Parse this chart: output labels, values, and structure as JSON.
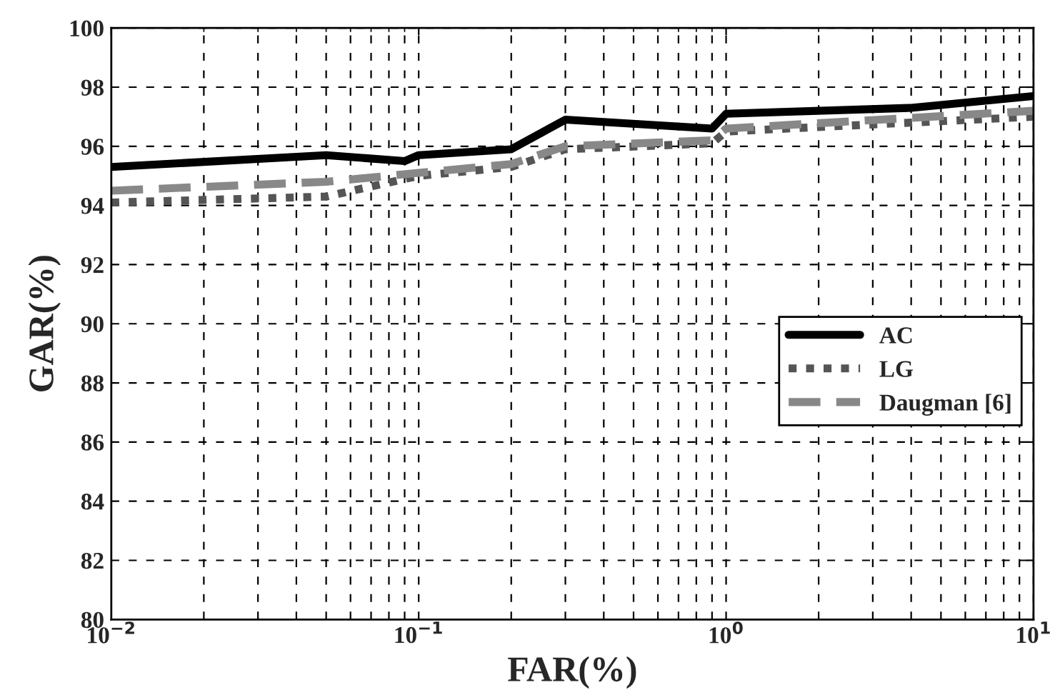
{
  "chart_data": {
    "type": "line",
    "xlabel": "FAR(%)",
    "ylabel": "GAR(%)",
    "log": "x",
    "xlim": [
      0.01,
      10
    ],
    "xticks": [
      {
        "value": 0.01,
        "label": "10$^{−2}$"
      },
      {
        "value": 0.1,
        "label": "10$^{−1}$"
      },
      {
        "value": 1,
        "label": "10$^{0}$"
      },
      {
        "value": 10,
        "label": "10$^{1}$"
      }
    ],
    "ylim": [
      80,
      100
    ],
    "yticks": [
      80,
      82,
      84,
      86,
      88,
      90,
      92,
      94,
      96,
      98,
      100
    ],
    "grid": true,
    "legend": "right",
    "series": [
      {
        "name": "AC",
        "color": "#000000",
        "line_style": "solid",
        "x": [
          0.01,
          0.05,
          0.09,
          0.1,
          0.2,
          0.3,
          0.9,
          1.0,
          4,
          10
        ],
        "values": [
          95.3,
          95.7,
          95.5,
          95.7,
          95.9,
          96.9,
          96.6,
          97.1,
          97.3,
          97.7
        ]
      },
      {
        "name": "LG",
        "color": "#555555",
        "line_style": "dotted",
        "x": [
          0.01,
          0.05,
          0.1,
          0.2,
          0.3,
          0.9,
          1.0,
          10
        ],
        "values": [
          94.1,
          94.3,
          95.0,
          95.3,
          95.9,
          96.1,
          96.5,
          97.0
        ]
      },
      {
        "name": "Daugman [6]",
        "color": "#888888",
        "line_style": "dashed",
        "x": [
          0.01,
          0.05,
          0.1,
          0.2,
          0.3,
          0.9,
          1.0,
          10
        ],
        "values": [
          94.5,
          94.8,
          95.1,
          95.4,
          96.0,
          96.2,
          96.6,
          97.2
        ]
      }
    ]
  }
}
